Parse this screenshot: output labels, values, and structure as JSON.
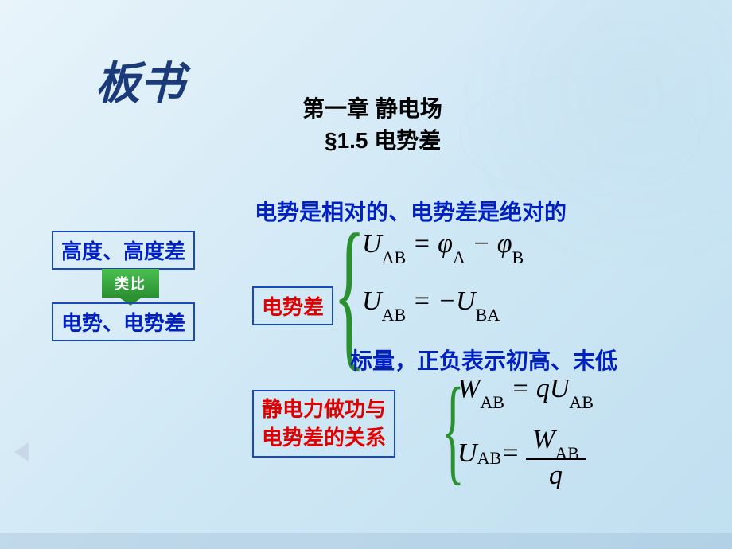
{
  "colors": {
    "bg_top": "#e8f4fa",
    "bg_bot": "#c0dff0",
    "title": "#1a3a7a",
    "blue_text": "#0020c0",
    "red_text": "#e00000",
    "border": "#1a4aba",
    "green_badge": "#2a9030",
    "brace": "#2a9030",
    "black": "#000000"
  },
  "typography": {
    "title_fontsize": 56,
    "header_fontsize": 28,
    "box_fontsize": 26,
    "stmt_fontsize": 28,
    "formula_fontsize": 34,
    "sub_fontsize": 22
  },
  "title": "板书",
  "chapter": "第一章 静电场",
  "section": "§1.5 电势差",
  "left": {
    "box1": "高度、高度差",
    "badge": "类比",
    "box2": "电势、电势差"
  },
  "mid_label": "电势差",
  "statement1": "电势是相对的、电势差是绝对的",
  "statement2": "标量，正负表示初高、末低",
  "bot_label_line1": "静电力做功与",
  "bot_label_line2": "电势差的关系",
  "formulas": {
    "f1": {
      "lhs_var": "U",
      "lhs_sub": "AB",
      "eq": " = ",
      "r1_var": "φ",
      "r1_sub": "A",
      "minus": " − ",
      "r2_var": "φ",
      "r2_sub": "B"
    },
    "f2": {
      "lhs_var": "U",
      "lhs_sub": "AB",
      "eq": " = −",
      "r_var": "U",
      "r_sub": "BA"
    },
    "f3": {
      "lhs_var": "W",
      "lhs_sub": "AB",
      "eq": " = ",
      "r1_var": "q",
      "r2_var": "U",
      "r2_sub": "AB"
    },
    "f4": {
      "lhs_var": "U",
      "lhs_sub": "AB",
      "eq": " = ",
      "num_var": "W",
      "num_sub": "AB",
      "den_var": "q"
    }
  }
}
